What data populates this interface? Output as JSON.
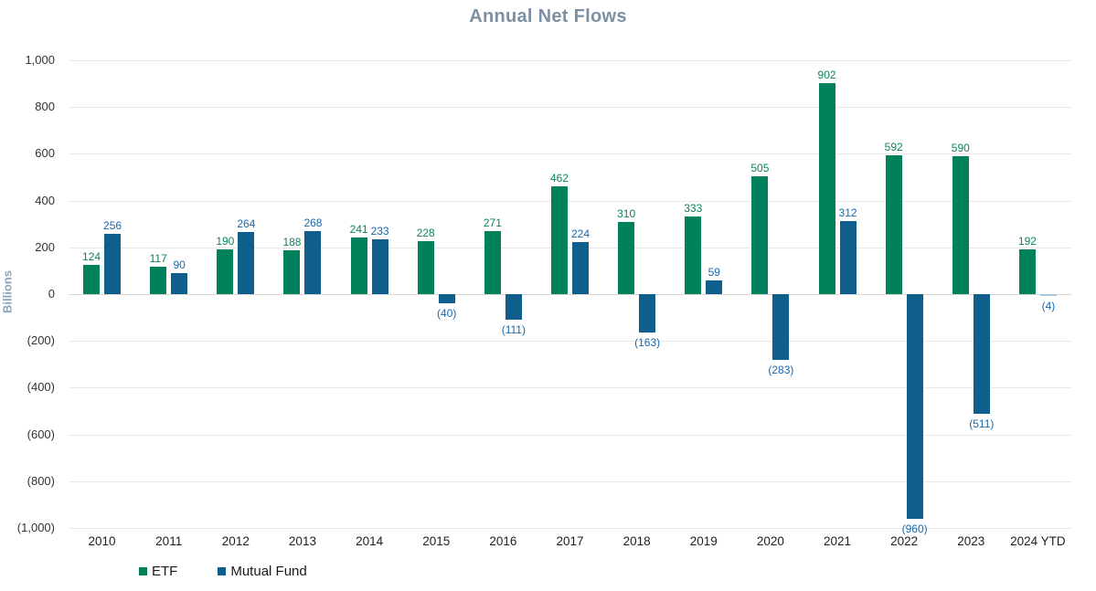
{
  "chart_data": {
    "type": "bar",
    "title": "Annual Net Flows",
    "ylabel": "Billions",
    "categories": [
      "2010",
      "2011",
      "2012",
      "2013",
      "2014",
      "2015",
      "2016",
      "2017",
      "2018",
      "2019",
      "2020",
      "2021",
      "2022",
      "2023",
      "2024 YTD"
    ],
    "series": [
      {
        "name": "ETF",
        "color": "#00815C",
        "label_color": "#0E8260",
        "values": [
          124,
          117,
          190,
          188,
          241,
          228,
          271,
          462,
          310,
          333,
          505,
          902,
          592,
          590,
          192
        ],
        "labels": [
          "124",
          "117",
          "190",
          "188",
          "241",
          "228",
          "271",
          "462",
          "310",
          "333",
          "505",
          "902",
          "592",
          "590",
          "192"
        ]
      },
      {
        "name": "Mutual Fund",
        "color": "#0F5E8C",
        "label_color": "#1A67AB",
        "values": [
          256,
          90,
          264,
          268,
          233,
          -40,
          -111,
          224,
          -163,
          59,
          -283,
          312,
          -960,
          -511,
          -4
        ],
        "labels": [
          "256",
          "90",
          "264",
          "268",
          "233",
          "(40)",
          "(111)",
          "224",
          "(163)",
          "59",
          "(283)",
          "312",
          "(960)",
          "(511)",
          "(4)"
        ]
      }
    ],
    "ylim": [
      -1000,
      1000
    ],
    "ytick_interval": 200,
    "ytick_labels": [
      "1,000",
      "800",
      "600",
      "400",
      "200",
      "0",
      "(200)",
      "(400)",
      "(600)",
      "(800)",
      "(1,000)"
    ],
    "grid": true,
    "legend_position": "bottom-left",
    "negative_label_format": "parentheses",
    "style": {
      "title_color": "#7D90A3",
      "ylabel_color": "#8CA5BC",
      "tick_label_color": "#333333",
      "xtick_label_color": "#1F1F1F",
      "grid_color": "#E9E9E9",
      "zero_line_color": "#D6D6D6",
      "tiny_bar_color": "#A9C7DC",
      "background": "#FFFFFF"
    }
  }
}
